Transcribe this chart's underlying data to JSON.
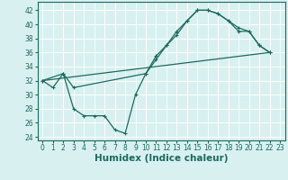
{
  "line1_x": [
    0,
    1,
    2,
    3,
    4,
    5,
    6,
    7,
    8,
    9,
    10,
    11,
    12,
    13,
    14,
    15,
    16,
    17,
    18,
    19,
    20,
    21,
    22
  ],
  "line1_y": [
    32,
    31,
    33,
    28,
    27,
    27,
    27,
    25,
    24.5,
    30,
    33,
    35,
    37,
    39,
    40.5,
    42,
    42,
    41.5,
    40.5,
    39,
    39,
    37,
    36
  ],
  "line2_x": [
    0,
    22
  ],
  "line2_y": [
    32,
    36
  ],
  "line3_x": [
    0,
    2,
    3,
    10,
    11,
    12,
    13,
    14,
    15,
    16,
    17,
    18,
    19,
    20,
    21,
    22
  ],
  "line3_y": [
    32,
    33,
    31,
    33,
    35.5,
    37,
    38.5,
    40.5,
    42,
    42,
    41.5,
    40.5,
    39.5,
    39,
    37,
    36
  ],
  "line_color": "#1a6b5e",
  "bg_color": "#d8f0f0",
  "grid_color": "#ffffff",
  "xlabel": "Humidex (Indice chaleur)",
  "xlim": [
    -0.5,
    23.5
  ],
  "ylim": [
    23.5,
    43.2
  ],
  "yticks": [
    24,
    26,
    28,
    30,
    32,
    34,
    36,
    38,
    40,
    42
  ],
  "xticks": [
    0,
    1,
    2,
    3,
    4,
    5,
    6,
    7,
    8,
    9,
    10,
    11,
    12,
    13,
    14,
    15,
    16,
    17,
    18,
    19,
    20,
    21,
    22,
    23
  ],
  "tick_fontsize": 5.5,
  "xlabel_fontsize": 7.5
}
